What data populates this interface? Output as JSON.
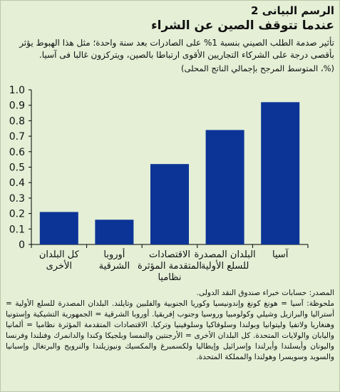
{
  "figure": {
    "label": "الرسم البيانى 2",
    "title": "عندما تتوقف الصين عن الشراء",
    "description": "تأثير صدمة الطلب الصيني بنسبة 1% على الصادرات بعد سنة واحدة؛ مثل هذا الهبوط يؤثر بأقصى درجة على الشركاء التجاريين الأقوى ارتباطا بالصين، ويتركزون غالبا فى آسيا.",
    "unit_note": "(%، المتوسط المرجح بإجمالي الناتج المحلى)"
  },
  "chart_data": {
    "type": "bar",
    "categories": [
      [
        "آسيا"
      ],
      [
        "البلدان المصدرة",
        "للسلع الأولية"
      ],
      [
        "الاقتصادات",
        "المتقدمة المؤثرة",
        "نظاميا"
      ],
      [
        "أوروبا",
        "الشرقية"
      ],
      [
        "كل البلدان",
        "الأخرى"
      ]
    ],
    "values": [
      0.92,
      0.74,
      0.52,
      0.16,
      0.21
    ],
    "ylim": [
      0,
      1.0
    ],
    "yticks": [
      "0",
      "0.1",
      "0.2",
      "0.3",
      "0.4",
      "0.5",
      "0.6",
      "0.7",
      "0.8",
      "0.9",
      "1.0"
    ],
    "grid": false,
    "bar_color": "#0b3496"
  },
  "footer": {
    "source": "المصدر: حسابات خبراء صندوق النقد الدولى.",
    "note": "ملحوظة: آسيا = هونغ كونغ وإندونيسيا وكوريا الجنوبية والفلبين وتايلند. البلدان المصدرة للسلع الأولية = أستراليا والبرازيل وشيلي وكولومبيا وروسيا وجنوب إفريقيا. أوروبا الشرقية = الجمهورية التشيكية وإستونيا وهنغاريا ولاتفيا وليتوانيا وبولندا وسلوفاكيا وسلوفينيا وتركيا. الاقتصادات المتقدمة المؤثرة نظاميا = ألمانيا واليابان والولايات المتحدة. كل البلدان الأخرى = الأرجنتين والنمسا وبلجيكا وكندا والدانمرك وفنلندا وفرنسا واليونان وأيسلندا وأيرلندا وإسرائيل وإيطاليا ولكسمبرغ والمكسيك ونيوزيلندا والنرويج والبرتغال وإسبانيا والسويد وسويسرا وهولندا والمملكة المتحدة."
  }
}
